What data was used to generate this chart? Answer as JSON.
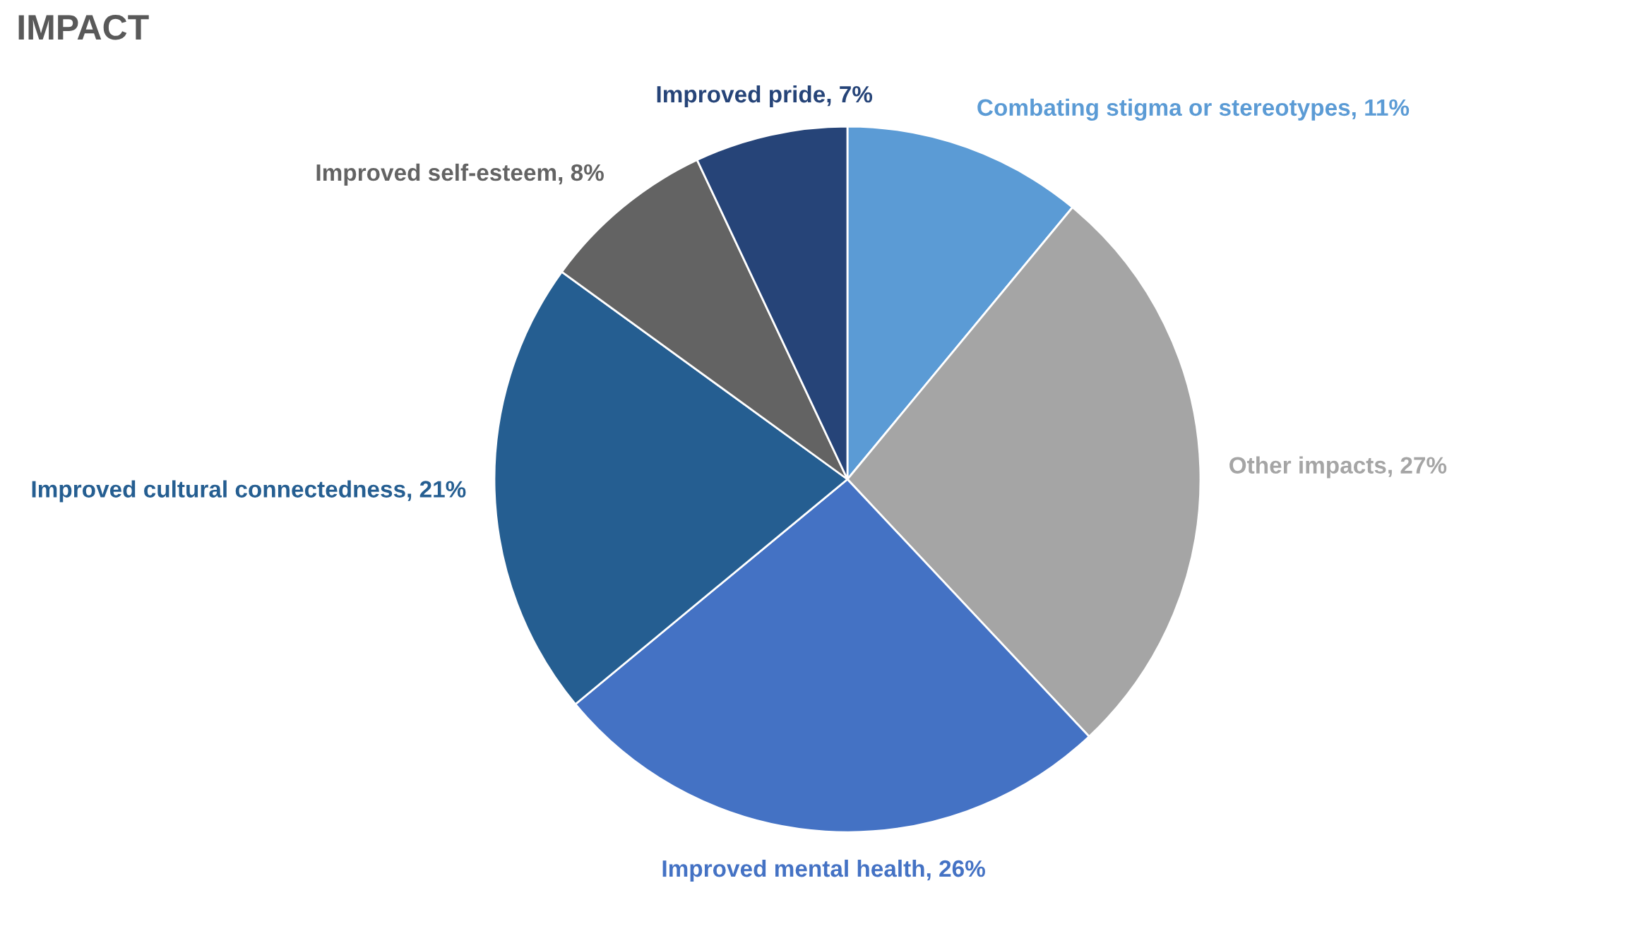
{
  "chart_data": {
    "type": "pie",
    "title": "IMPACT",
    "categories": [
      "Combating stigma or stereotypes",
      "Other impacts",
      "Improved mental health",
      "Improved cultural connectedness",
      "Improved self-esteem",
      "Improved pride"
    ],
    "values": [
      11,
      27,
      26,
      21,
      8,
      7
    ],
    "value_labels": [
      "11%",
      "27%",
      "26%",
      "21%",
      "8%",
      "7%"
    ],
    "colors": [
      "#5b9bd5",
      "#a5a5a5",
      "#4472c4",
      "#255e91",
      "#636363",
      "#264478"
    ],
    "legend": false
  }
}
